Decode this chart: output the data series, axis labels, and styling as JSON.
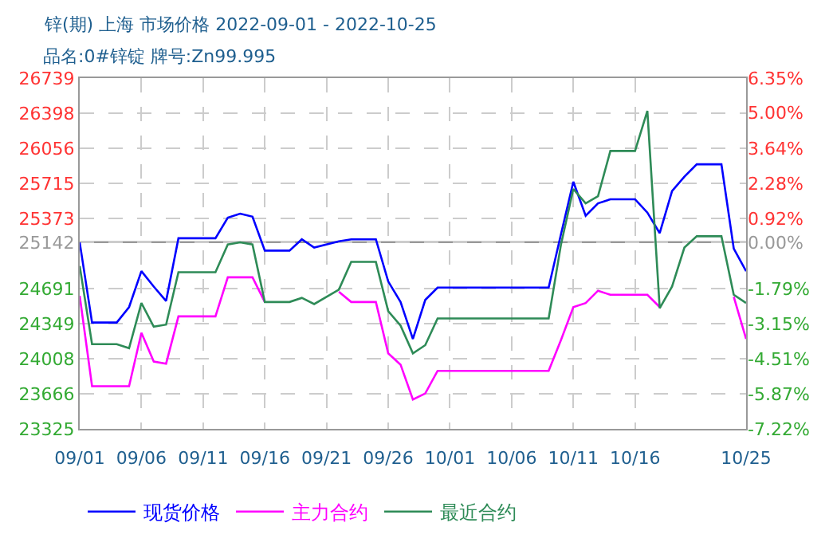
{
  "chart_data": {
    "type": "line",
    "title": "锌(期) 上海 市场价格 2022-09-01 - 2022-10-25",
    "subtitle": "品名:0#锌锭 牌号:Zn99.995",
    "x": [
      "2022-09-01",
      "2022-09-02",
      "2022-09-04",
      "2022-09-05",
      "2022-09-06",
      "2022-09-07",
      "2022-09-08",
      "2022-09-09",
      "2022-09-12",
      "2022-09-13",
      "2022-09-14",
      "2022-09-15",
      "2022-09-16",
      "2022-09-18",
      "2022-09-19",
      "2022-09-20",
      "2022-09-22",
      "2022-09-23",
      "2022-09-25",
      "2022-09-26",
      "2022-09-27",
      "2022-09-28",
      "2022-09-29",
      "2022-09-30",
      "2022-10-09",
      "2022-10-10",
      "2022-10-11",
      "2022-10-12",
      "2022-10-13",
      "2022-10-14",
      "2022-10-16",
      "2022-10-17",
      "2022-10-18",
      "2022-10-19",
      "2022-10-20",
      "2022-10-21",
      "2022-10-23",
      "2022-10-24",
      "2022-10-25"
    ],
    "series": [
      {
        "name": "现货价格",
        "color": "#0000ff",
        "values": [
          25140,
          24360,
          24360,
          24510,
          24860,
          24710,
          24570,
          25180,
          25180,
          25380,
          25420,
          25390,
          25060,
          25060,
          25170,
          25090,
          25150,
          25170,
          25170,
          24760,
          24560,
          24200,
          24580,
          24700,
          24700,
          25220,
          25730,
          25400,
          25520,
          25560,
          25560,
          25430,
          25230,
          25640,
          25780,
          25900,
          25900,
          25080,
          24860
        ]
      },
      {
        "name": "主力合约",
        "color": "#ff00ff",
        "values": [
          24620,
          23740,
          23740,
          23740,
          24260,
          23980,
          23960,
          24420,
          24420,
          24800,
          24800,
          24800,
          24560,
          null,
          null,
          null,
          24660,
          24560,
          24560,
          24060,
          23950,
          23610,
          23670,
          23890,
          23890,
          24190,
          24510,
          24550,
          24670,
          24630,
          24630,
          24630,
          24510,
          null,
          null,
          null,
          null,
          24610,
          24200
        ]
      },
      {
        "name": "最近合约",
        "color": "#2e8b57",
        "values": [
          24910,
          24150,
          24150,
          24110,
          24550,
          24320,
          24340,
          24850,
          24850,
          25120,
          25140,
          25120,
          24560,
          24560,
          24600,
          24540,
          24680,
          24950,
          24950,
          24470,
          24330,
          24060,
          24140,
          24400,
          24400,
          25120,
          25660,
          25520,
          25590,
          26030,
          26030,
          26420,
          24500,
          24710,
          25090,
          25200,
          25200,
          24630,
          24550
        ]
      }
    ],
    "xlim": [
      "2022-09-01",
      "2022-10-25"
    ],
    "xticks": [
      {
        "value": "2022-09-01",
        "label": "09/01"
      },
      {
        "value": "2022-09-06",
        "label": "09/06"
      },
      {
        "value": "2022-09-11",
        "label": "09/11"
      },
      {
        "value": "2022-09-16",
        "label": "09/16"
      },
      {
        "value": "2022-09-21",
        "label": "09/21"
      },
      {
        "value": "2022-09-26",
        "label": "09/26"
      },
      {
        "value": "2022-10-01",
        "label": "10/01"
      },
      {
        "value": "2022-10-06",
        "label": "10/06"
      },
      {
        "value": "2022-10-11",
        "label": "10/11"
      },
      {
        "value": "2022-10-16",
        "label": "10/16"
      },
      {
        "value": "2022-10-25",
        "label": "10/25"
      }
    ],
    "ylim": [
      23325,
      26739
    ],
    "yticks": [
      23325,
      23666,
      24008,
      24349,
      24691,
      25142,
      25373,
      25715,
      26056,
      26398,
      26739
    ],
    "y2lim": [
      -7.22,
      6.35
    ],
    "y2ticks": [
      {
        "value": -7.22,
        "label": "-7.22%"
      },
      {
        "value": -5.87,
        "label": "-5.87%"
      },
      {
        "value": -4.51,
        "label": "-4.51%"
      },
      {
        "value": -3.15,
        "label": "-3.15%"
      },
      {
        "value": -1.79,
        "label": "-1.79%"
      },
      {
        "value": 0,
        "label": "0.00%"
      },
      {
        "value": 0.92,
        "label": "0.92%"
      },
      {
        "value": 2.28,
        "label": "2.28%"
      },
      {
        "value": 3.64,
        "label": "3.64%"
      },
      {
        "value": 5.0,
        "label": "5.00%"
      },
      {
        "value": 6.35,
        "label": "6.35%"
      }
    ],
    "ref_lines": [
      {
        "axis": "y",
        "value": 25142,
        "color": "#999999"
      }
    ],
    "grid": true,
    "legend": "bottom",
    "marker": "none",
    "line_style": "solid"
  }
}
